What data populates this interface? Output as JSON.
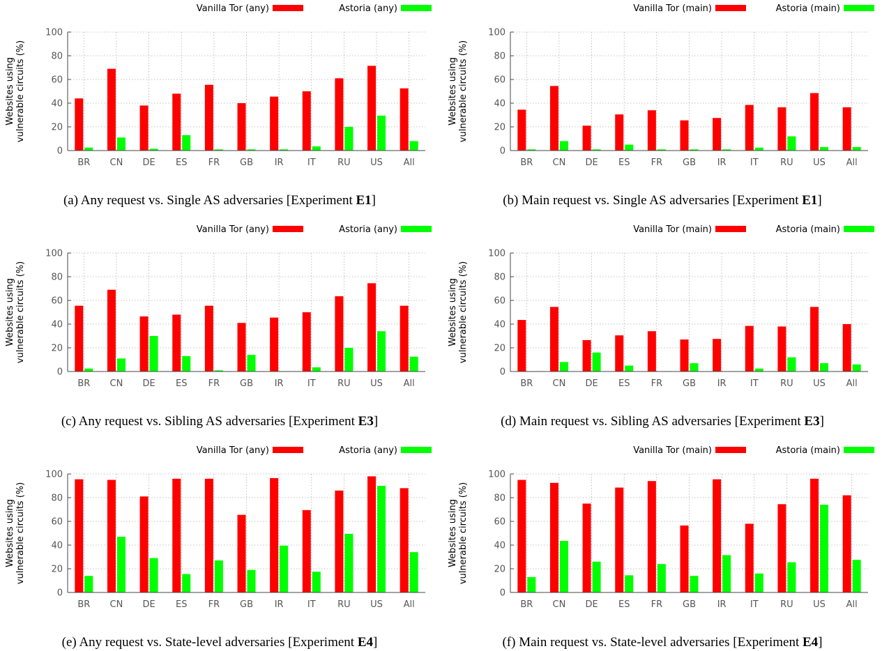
{
  "colors": {
    "vanilla": "#ff0000",
    "astoria": "#00ff00",
    "grid": "#b0b0b0",
    "axis": "#444444"
  },
  "chart_data": [
    {
      "type": "bar",
      "panel_label": "(a)",
      "caption": "Any request vs. Single AS adversaries [Experiment ",
      "caption_exp": "E1",
      "caption_end": "]",
      "ylabel": [
        "Websites using",
        "vulnerable circuits (%)"
      ],
      "ylim": [
        0,
        100
      ],
      "yticks": [
        0,
        20,
        40,
        60,
        80,
        100
      ],
      "grid": true,
      "legend_position": "top",
      "categories": [
        "BR",
        "CN",
        "DE",
        "ES",
        "FR",
        "GB",
        "IR",
        "IT",
        "RU",
        "US",
        "All"
      ],
      "series": [
        {
          "name": "Vanilla Tor (any)",
          "color": "#ff0000",
          "values": [
            44,
            69,
            38,
            48,
            55.5,
            40,
            45.5,
            50,
            61,
            71.5,
            52.5
          ]
        },
        {
          "name": "Astoria (any)",
          "color": "#00ff00",
          "values": [
            2.5,
            11,
            1.5,
            13,
            1,
            1,
            1,
            3.5,
            20,
            29.5,
            8
          ]
        }
      ]
    },
    {
      "type": "bar",
      "panel_label": "(b)",
      "caption": "Main request vs. Single AS adversaries [Experiment ",
      "caption_exp": "E1",
      "caption_end": "]",
      "ylabel": [
        "Websites using",
        "vulnerable circuits (%)"
      ],
      "ylim": [
        0,
        100
      ],
      "yticks": [
        0,
        20,
        40,
        60,
        80,
        100
      ],
      "grid": true,
      "legend_position": "top",
      "categories": [
        "BR",
        "CN",
        "DE",
        "ES",
        "FR",
        "GB",
        "IR",
        "IT",
        "RU",
        "US",
        "All"
      ],
      "series": [
        {
          "name": "Vanilla Tor (main)",
          "color": "#ff0000",
          "values": [
            34.5,
            54.5,
            21,
            30.5,
            34,
            25.5,
            27.5,
            38.5,
            36.5,
            48.5,
            36.5
          ]
        },
        {
          "name": "Astoria (main)",
          "color": "#00ff00",
          "values": [
            1,
            8,
            1,
            5,
            1,
            1,
            1,
            2.5,
            12,
            3,
            3
          ]
        }
      ]
    },
    {
      "type": "bar",
      "panel_label": "(c)",
      "caption": "Any request vs. Sibling AS adversaries [Experiment ",
      "caption_exp": "E3",
      "caption_end": "]",
      "ylabel": [
        "Websites using",
        "vulnerable circuits (%)"
      ],
      "ylim": [
        0,
        100
      ],
      "yticks": [
        0,
        20,
        40,
        60,
        80,
        100
      ],
      "grid": true,
      "legend_position": "top",
      "categories": [
        "BR",
        "CN",
        "DE",
        "ES",
        "FR",
        "GB",
        "IR",
        "IT",
        "RU",
        "US",
        "All"
      ],
      "series": [
        {
          "name": "Vanilla Tor (any)",
          "color": "#ff0000",
          "values": [
            55.5,
            69,
            46.5,
            48,
            55.5,
            41,
            45.5,
            50,
            63.5,
            74.5,
            55.5
          ]
        },
        {
          "name": "Astoria (any)",
          "color": "#00ff00",
          "values": [
            2.5,
            11,
            30,
            13,
            1,
            14,
            0,
            3.5,
            20,
            34,
            12.5
          ]
        }
      ]
    },
    {
      "type": "bar",
      "panel_label": "(d)",
      "caption": "Main request vs. Sibling AS adversaries [Experiment ",
      "caption_exp": "E3",
      "caption_end": "]",
      "ylabel": [
        "Websites using",
        "vulnerable circuits (%)"
      ],
      "ylim": [
        0,
        100
      ],
      "yticks": [
        0,
        20,
        40,
        60,
        80,
        100
      ],
      "grid": true,
      "legend_position": "top",
      "categories": [
        "BR",
        "CN",
        "DE",
        "ES",
        "FR",
        "GB",
        "IR",
        "IT",
        "RU",
        "US",
        "All"
      ],
      "series": [
        {
          "name": "Vanilla Tor (main)",
          "color": "#ff0000",
          "values": [
            43.5,
            54.5,
            26.5,
            30.5,
            34,
            27,
            27.5,
            38.5,
            38,
            54.5,
            40
          ]
        },
        {
          "name": "Astoria (main)",
          "color": "#00ff00",
          "values": [
            0,
            8,
            16,
            5,
            0,
            7,
            0,
            2.5,
            12,
            7,
            6
          ]
        }
      ]
    },
    {
      "type": "bar",
      "panel_label": "(e)",
      "caption": "Any request vs. State-level adversaries [Experiment ",
      "caption_exp": "E4",
      "caption_end": "]",
      "ylabel": [
        "Websites using",
        "vulnerable circuits (%)"
      ],
      "ylim": [
        0,
        100
      ],
      "yticks": [
        0,
        20,
        40,
        60,
        80,
        100
      ],
      "grid": true,
      "legend_position": "top",
      "categories": [
        "BR",
        "CN",
        "DE",
        "ES",
        "FR",
        "GB",
        "IR",
        "IT",
        "RU",
        "US",
        "All"
      ],
      "series": [
        {
          "name": "Vanilla Tor (any)",
          "color": "#ff0000",
          "values": [
            95.5,
            95,
            81,
            96,
            96,
            65.5,
            96.5,
            69.5,
            86,
            98,
            88
          ]
        },
        {
          "name": "Astoria (any)",
          "color": "#00ff00",
          "values": [
            14,
            47,
            29,
            15.5,
            27,
            19,
            39.5,
            17.5,
            49.5,
            90,
            34
          ]
        }
      ]
    },
    {
      "type": "bar",
      "panel_label": "(f)",
      "caption": "Main request vs. State-level adversaries [Experiment ",
      "caption_exp": "E4",
      "caption_end": "]",
      "ylabel": [
        "Websites using",
        "vulnerable circuits (%)"
      ],
      "ylim": [
        0,
        100
      ],
      "yticks": [
        0,
        20,
        40,
        60,
        80,
        100
      ],
      "grid": true,
      "legend_position": "top",
      "categories": [
        "BR",
        "CN",
        "DE",
        "ES",
        "FR",
        "GB",
        "IR",
        "IT",
        "RU",
        "US",
        "All"
      ],
      "series": [
        {
          "name": "Vanilla Tor (main)",
          "color": "#ff0000",
          "values": [
            95,
            92.5,
            75,
            88.5,
            94,
            56.5,
            95.5,
            58,
            74.5,
            96,
            82
          ]
        },
        {
          "name": "Astoria (main)",
          "color": "#00ff00",
          "values": [
            13,
            43.5,
            26,
            14.5,
            24,
            14,
            31.5,
            16,
            25.5,
            74,
            27.5
          ]
        }
      ]
    }
  ]
}
